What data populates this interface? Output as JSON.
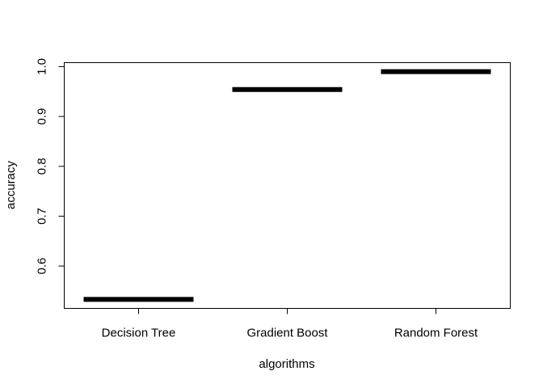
{
  "chart_data": {
    "type": "boxplot",
    "title": "",
    "xlabel": "algorithms",
    "ylabel": "accuracy",
    "categories": [
      "Decision Tree",
      "Gradient Boost",
      "Random Forest"
    ],
    "values": [
      0.533,
      0.954,
      0.99
    ],
    "ylim": [
      0.515,
      1.008
    ],
    "yticks": [
      0.6,
      0.7,
      0.8,
      0.9,
      1.0
    ],
    "ytick_labels": [
      "0.6",
      "0.7",
      "0.8",
      "0.9",
      "1.0"
    ],
    "grid": false,
    "legend": "none",
    "mark_color": "#000000"
  }
}
